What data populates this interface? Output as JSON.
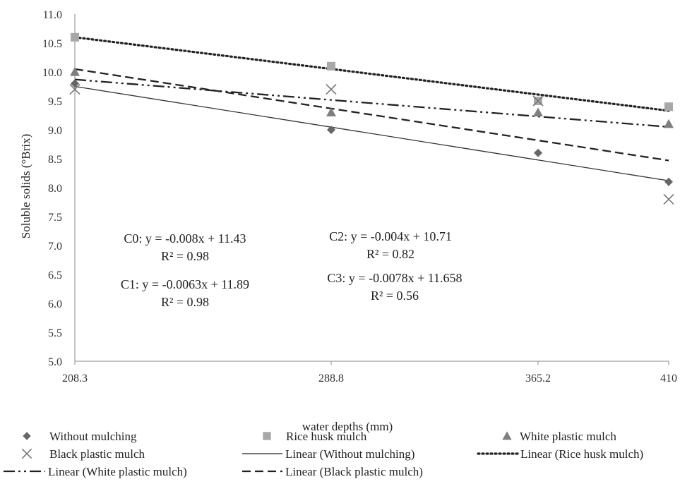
{
  "chart_data": {
    "type": "scatter",
    "xlabel": "water depths (mm)",
    "ylabel": "Soluble solids (°Brix)",
    "x": [
      208.3,
      288.8,
      365.2,
      410
    ],
    "x_tick_labels": [
      "208.3",
      "288.8",
      "365.2",
      "410"
    ],
    "x_axis_style": "categorical-evenly-spaced",
    "ylim": [
      5.0,
      11.0
    ],
    "y_ticks": [
      "5.0",
      "5.5",
      "6.0",
      "6.5",
      "7.0",
      "7.5",
      "8.0",
      "8.5",
      "9.0",
      "9.5",
      "10.0",
      "10.5",
      "11.0"
    ],
    "grid": false,
    "legend_position": "bottom",
    "series": [
      {
        "name": "Without mulching",
        "marker": "diamond",
        "color": "#666666",
        "values": [
          9.8,
          9.0,
          8.6,
          8.1
        ]
      },
      {
        "name": "Rice husk mulch",
        "marker": "square",
        "color": "#a8a8a8",
        "values": [
          10.6,
          10.1,
          9.5,
          9.4
        ]
      },
      {
        "name": "White plastic mulch",
        "marker": "triangle",
        "color": "#7f7f7f",
        "values": [
          10.0,
          9.3,
          9.3,
          9.1
        ]
      },
      {
        "name": "Black plastic mulch",
        "marker": "x",
        "color": "#777777",
        "values": [
          9.7,
          9.7,
          9.5,
          7.8
        ]
      }
    ],
    "trendlines": [
      {
        "name": "Linear (Without mulching)",
        "style": "solid",
        "color": "#333333",
        "start": 9.75,
        "end": 8.12
      },
      {
        "name": "Linear (Rice husk mulch)",
        "style": "dotted",
        "color": "#222222",
        "start": 10.6,
        "end": 9.33
      },
      {
        "name": "Linear (White plastic mulch)",
        "style": "dash-dot-dot",
        "color": "#222222",
        "start": 9.87,
        "end": 9.05
      },
      {
        "name": "Linear (Black plastic mulch)",
        "style": "dashed",
        "color": "#222222",
        "start": 10.05,
        "end": 8.47
      }
    ],
    "annotations": [
      {
        "lines": [
          "C0: y = -0.008x + 11.43",
          "R² = 0.98"
        ]
      },
      {
        "lines": [
          "C1: y = -0.0063x + 11.89",
          "R² = 0.98"
        ]
      },
      {
        "lines": [
          "C2: y = -0.004x + 10.71",
          "R² = 0.82"
        ]
      },
      {
        "lines": [
          "C3: y = -0.0078x + 11.658",
          "R² = 0.56"
        ]
      }
    ]
  }
}
